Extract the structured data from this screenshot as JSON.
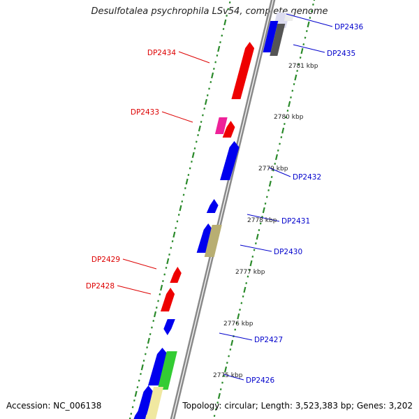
{
  "title": "Desulfotalea psychrophila LSv54, complete genome",
  "footer": {
    "accession": "Accession: NC_006138",
    "summary": "Topology: circular; Length: 3,523,383 bp; Genes: 3,202"
  },
  "colors": {
    "backbone": "#8a8a8a",
    "dots": "#2a8a2a",
    "label_left": "#dd0000",
    "label_right": "#0000cc",
    "ruler_text": "#222222"
  },
  "ruler": [
    "2781 kbp",
    "2780 kbp",
    "2779 kbp",
    "2778 kbp",
    "2777 kbp",
    "2776 kbp",
    "2775 kbp"
  ],
  "labels_left": [
    "DP2434",
    "DP2433",
    "DP2429",
    "DP2428"
  ],
  "labels_right": [
    "DP2436",
    "DP2435",
    "DP2432",
    "DP2431",
    "DP2430",
    "DP2427",
    "DP2426"
  ],
  "genes": [
    {
      "name": "DP2436-box",
      "color": "#dcdcf0"
    },
    {
      "name": "DP2436-box-2",
      "color": "#ededed"
    },
    {
      "name": "DP2435-blue",
      "color": "#0000ee"
    },
    {
      "name": "DP2435-gray",
      "color": "#555555"
    },
    {
      "name": "DP2434",
      "color": "#ee0000"
    },
    {
      "name": "DP2433-pink",
      "color": "#ee2299"
    },
    {
      "name": "DP2433-red",
      "color": "#ee0000"
    },
    {
      "name": "DP2432",
      "color": "#0000ee"
    },
    {
      "name": "DP2431",
      "color": "#0000ee"
    },
    {
      "name": "DP2430-blue",
      "color": "#0000ee"
    },
    {
      "name": "DP2430-olive",
      "color": "#b8ae72"
    },
    {
      "name": "DP2429",
      "color": "#ee0000"
    },
    {
      "name": "DP2428",
      "color": "#ee0000"
    },
    {
      "name": "DP2427",
      "color": "#0000ee"
    },
    {
      "name": "DP2426-blue",
      "color": "#0000ee"
    },
    {
      "name": "DP2426-green",
      "color": "#33cc33"
    },
    {
      "name": "DP2425-blue",
      "color": "#0000ee"
    },
    {
      "name": "DP2425-yellow",
      "color": "#f0e8a0"
    },
    {
      "name": "DP2424-blue",
      "color": "#0000ee"
    },
    {
      "name": "DP2424-yellow",
      "color": "#f0e8a0"
    }
  ]
}
